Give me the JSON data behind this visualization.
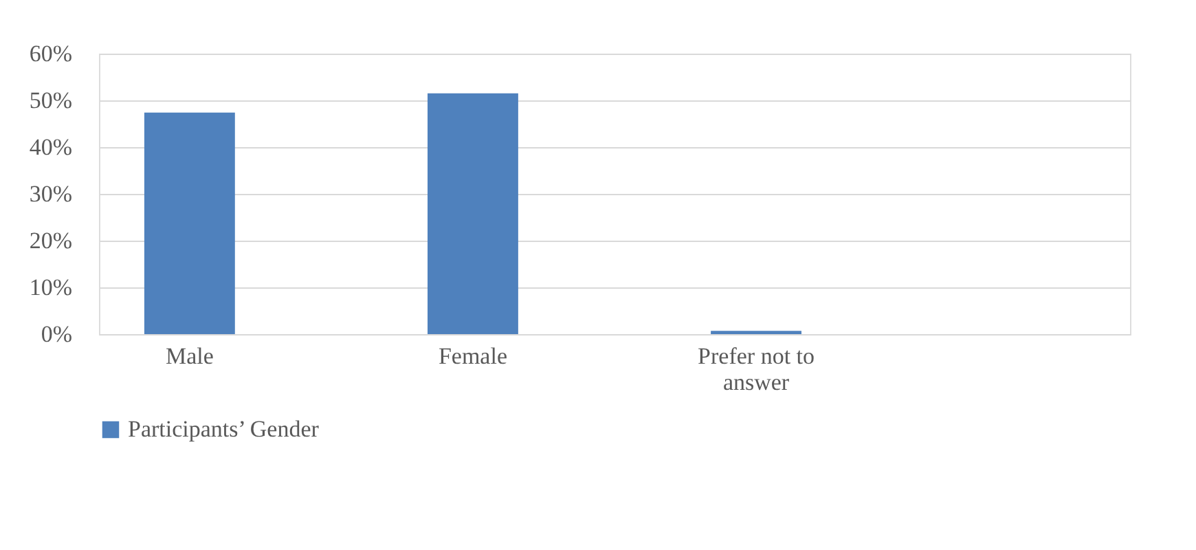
{
  "chart_data": {
    "type": "bar",
    "categories": [
      "Male",
      "Female",
      "Prefer not to answer",
      null
    ],
    "series": [
      {
        "name": "Participants’ Gender",
        "color": "#4f81bd",
        "values": [
          47.4,
          51.5,
          0.7,
          null
        ]
      }
    ],
    "ylim": [
      0,
      60
    ],
    "yticks": [
      {
        "value": 0,
        "label": "0%"
      },
      {
        "value": 10,
        "label": "10%"
      },
      {
        "value": 20,
        "label": "20%"
      },
      {
        "value": 30,
        "label": "30%"
      },
      {
        "value": 40,
        "label": "40%"
      },
      {
        "value": 50,
        "label": "50%"
      },
      {
        "value": 60,
        "label": "60%"
      }
    ],
    "grid": "y",
    "legend": "bottom"
  }
}
